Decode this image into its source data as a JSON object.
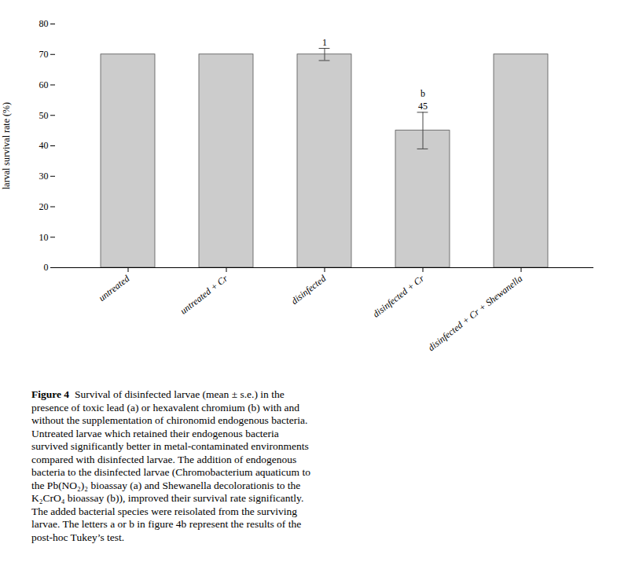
{
  "chart_data": {
    "type": "bar",
    "categories": [
      "untreated",
      "untreated + Cr",
      "disinfected",
      "disinfected + Cr",
      "disinfected + Cr + Shewanella"
    ],
    "values": [
      70,
      70,
      70,
      45,
      70
    ],
    "errors": [
      0,
      0,
      2,
      6,
      0
    ],
    "color": "#cccccc",
    "ylabel": "larval survival rate (%)",
    "ylim": [
      0,
      80
    ],
    "yticks": [
      0,
      10,
      20,
      30,
      40,
      50,
      60,
      70,
      80
    ],
    "grid": false,
    "annotations": [
      {
        "text": "1",
        "category": "disinfected"
      },
      {
        "text": "45",
        "category": "disinfected + Cr"
      },
      {
        "text": "b",
        "category": "disinfected + Cr"
      }
    ],
    "caption_label": "Figure 4",
    "caption": "  Survival of disinfected larvae (mean ± s.e.) in the\npresence of toxic lead (a) or hexavalent chromium (b) with and\nwithout the supplementation of chironomid endogenous bacteria.\nUntreated larvae which retained their endogenous bacteria\nsurvived significantly better in metal-contaminated environments\ncompared with disinfected larvae. The addition of endogenous\nbacteria to the disinfected larvae (Chromobacterium aquaticum to\nthe Pb(NO₂)₂ bioassay (a) and Shewanella decolorationis to the\nK₂CrO₄ bioassay (b)), improved their survival rate significantly.\nThe added bacterial species were reisolated from the surviving\nlarvae. The letters a or b in figure 4b represent the results of the\npost-hoc Tukey’s test."
  }
}
